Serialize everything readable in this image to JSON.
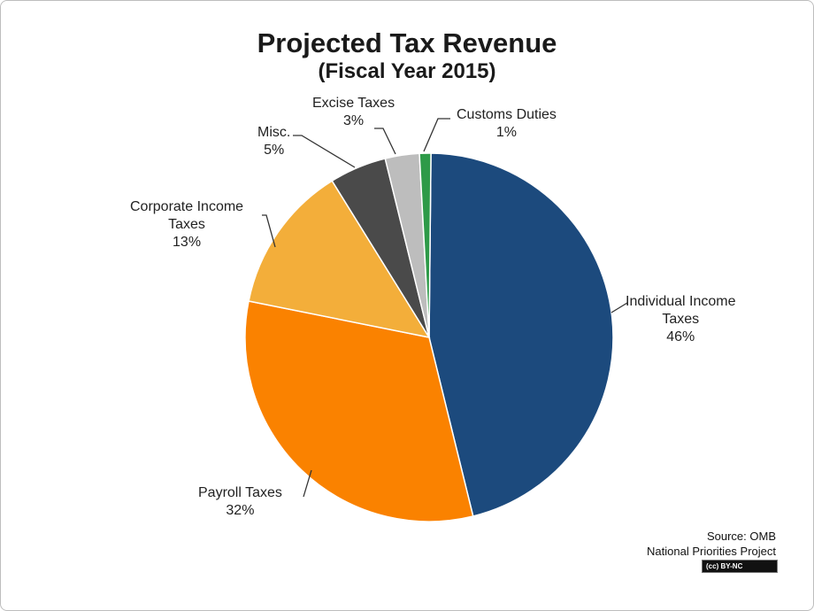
{
  "chart_data": {
    "type": "pie",
    "title": "Projected Tax Revenue",
    "subtitle": "(Fiscal Year 2015)",
    "slices": [
      {
        "label_lines": [
          "Individual  Income",
          "Taxes"
        ],
        "pct_label": "46%",
        "value": 46,
        "color": "#1c4a7d"
      },
      {
        "label_lines": [
          "Payroll Taxes"
        ],
        "pct_label": "32%",
        "value": 32,
        "color": "#fa8200"
      },
      {
        "label_lines": [
          "Corporate  Income",
          "Taxes"
        ],
        "pct_label": "13%",
        "value": 13,
        "color": "#f3ae3a"
      },
      {
        "label_lines": [
          "Misc."
        ],
        "pct_label": "5%",
        "value": 5,
        "color": "#4a4a4a"
      },
      {
        "label_lines": [
          "Excise Taxes"
        ],
        "pct_label": "3%",
        "value": 3,
        "color": "#bdbdbd"
      },
      {
        "label_lines": [
          "Customs Duties"
        ],
        "pct_label": "1%",
        "value": 1,
        "color": "#2e9a48"
      }
    ],
    "start": "top",
    "direction": "clockwise"
  },
  "source": {
    "line1": "Source: OMB",
    "line2": "National Priorities Project",
    "license": "(cc) BY-NC"
  }
}
